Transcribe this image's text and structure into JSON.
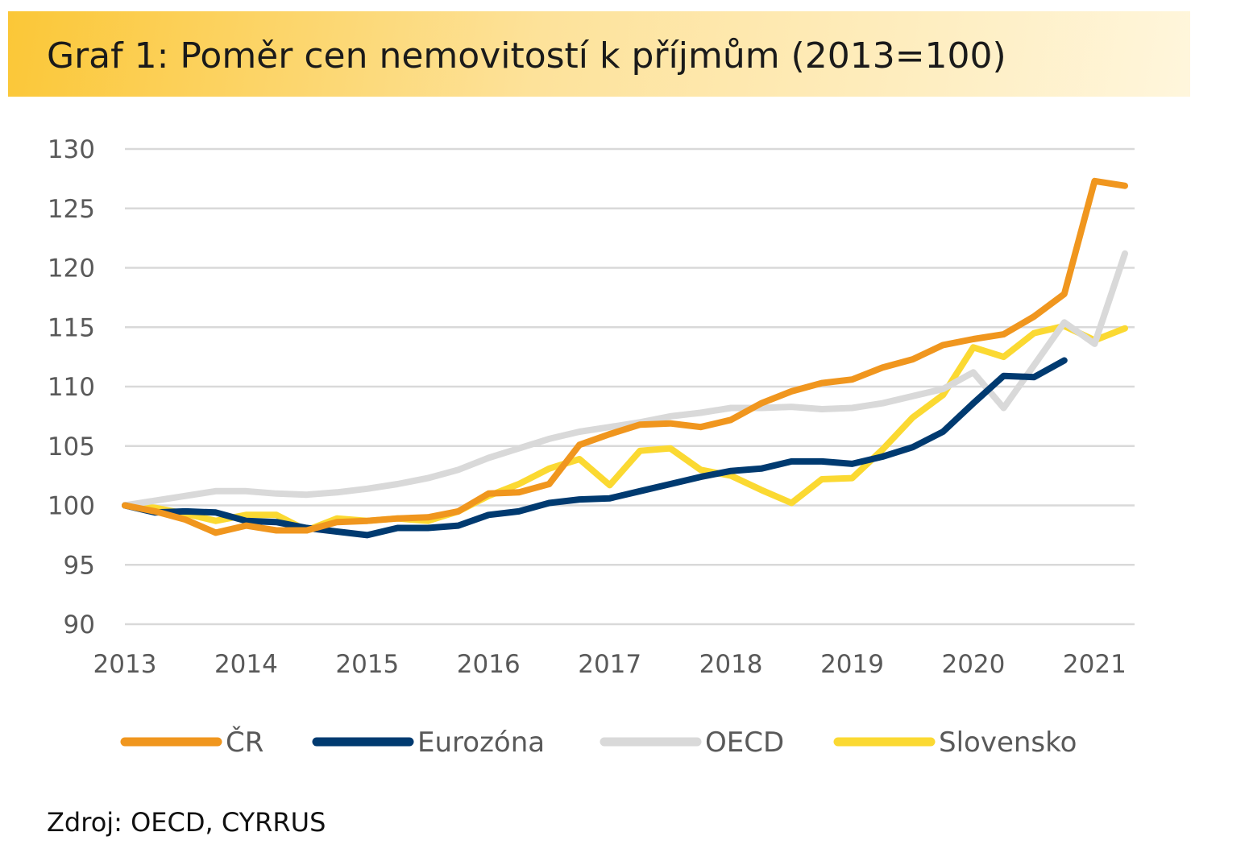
{
  "title": "Graf 1: Poměr cen nemovitostí k příjmům (2013=100)",
  "source": "Zdroj: OECD, CYRRUS",
  "chart_data": {
    "type": "line",
    "xlim": [
      2013,
      2021.33
    ],
    "ylim": [
      90,
      130
    ],
    "y_ticks": [
      90,
      95,
      100,
      105,
      110,
      115,
      120,
      125,
      130
    ],
    "x_ticks": [
      "2013",
      "2014",
      "2015",
      "2016",
      "2017",
      "2018",
      "2019",
      "2020",
      "2021"
    ],
    "grid": true,
    "legend_position": "bottom",
    "series": [
      {
        "name": "ČR",
        "color": "#f0961e",
        "x": [
          2013,
          2013.25,
          2013.5,
          2013.75,
          2014,
          2014.25,
          2014.5,
          2014.75,
          2015,
          2015.25,
          2015.5,
          2015.75,
          2016,
          2016.25,
          2016.5,
          2016.75,
          2017,
          2017.25,
          2017.5,
          2017.75,
          2018,
          2018.25,
          2018.5,
          2018.75,
          2019,
          2019.25,
          2019.5,
          2019.75,
          2020,
          2020.25,
          2020.5,
          2020.75,
          2021,
          2021.25
        ],
        "y": [
          100,
          99.5,
          98.8,
          97.7,
          98.3,
          97.9,
          97.9,
          98.6,
          98.7,
          98.9,
          99.0,
          99.5,
          101.0,
          101.1,
          101.8,
          105.1,
          106.0,
          106.8,
          106.9,
          106.6,
          107.2,
          108.6,
          109.6,
          110.3,
          110.6,
          111.6,
          112.3,
          113.5,
          114.0,
          114.4,
          115.9,
          117.8,
          127.3,
          126.9
        ]
      },
      {
        "name": "Eurozóna",
        "color": "#003a70",
        "x": [
          2013,
          2013.25,
          2013.5,
          2013.75,
          2014,
          2014.25,
          2014.5,
          2014.75,
          2015,
          2015.25,
          2015.5,
          2015.75,
          2016,
          2016.25,
          2016.5,
          2016.75,
          2017,
          2017.25,
          2017.5,
          2017.75,
          2018,
          2018.25,
          2018.5,
          2018.75,
          2019,
          2019.25,
          2019.5,
          2019.75,
          2020,
          2020.25,
          2020.5,
          2020.75
        ],
        "y": [
          100,
          99.4,
          99.5,
          99.4,
          98.7,
          98.6,
          98.1,
          97.8,
          97.5,
          98.1,
          98.1,
          98.3,
          99.2,
          99.5,
          100.2,
          100.5,
          100.6,
          101.2,
          101.8,
          102.4,
          102.9,
          103.1,
          103.7,
          103.7,
          103.5,
          104.1,
          104.9,
          106.2,
          108.6,
          110.9,
          110.8,
          112.2
        ]
      },
      {
        "name": "OECD",
        "color": "#d9d9d9",
        "x": [
          2013,
          2013.25,
          2013.5,
          2013.75,
          2014,
          2014.25,
          2014.5,
          2014.75,
          2015,
          2015.25,
          2015.5,
          2015.75,
          2016,
          2016.25,
          2016.5,
          2016.75,
          2017,
          2017.25,
          2017.5,
          2017.75,
          2018,
          2018.25,
          2018.5,
          2018.75,
          2019,
          2019.25,
          2019.5,
          2019.75,
          2020,
          2020.25,
          2020.5,
          2020.75,
          2021,
          2021.25
        ],
        "y": [
          100,
          100.4,
          100.8,
          101.2,
          101.2,
          101.0,
          100.9,
          101.1,
          101.4,
          101.8,
          102.3,
          103.0,
          104.0,
          104.8,
          105.6,
          106.2,
          106.6,
          107.0,
          107.5,
          107.8,
          108.2,
          108.2,
          108.3,
          108.1,
          108.2,
          108.6,
          109.2,
          109.8,
          111.2,
          108.2,
          111.8,
          115.4,
          113.6,
          121.2
        ]
      },
      {
        "name": "Slovensko",
        "color": "#fbd932",
        "x": [
          2013,
          2013.25,
          2013.5,
          2013.75,
          2014,
          2014.25,
          2014.5,
          2014.75,
          2015,
          2015.25,
          2015.5,
          2015.75,
          2016,
          2016.25,
          2016.5,
          2016.75,
          2017,
          2017.25,
          2017.5,
          2017.75,
          2018,
          2018.25,
          2018.5,
          2018.75,
          2019,
          2019.25,
          2019.5,
          2019.75,
          2020,
          2020.25,
          2020.5,
          2020.75,
          2021,
          2021.25
        ],
        "y": [
          100,
          99.8,
          99.3,
          98.7,
          99.2,
          99.2,
          97.9,
          98.9,
          98.7,
          98.9,
          98.7,
          99.5,
          100.8,
          101.8,
          103.1,
          103.9,
          101.7,
          104.6,
          104.8,
          103.0,
          102.5,
          101.3,
          100.2,
          102.2,
          102.3,
          104.7,
          107.4,
          109.3,
          113.3,
          112.5,
          114.5,
          115.1,
          113.9,
          114.9
        ]
      }
    ]
  }
}
